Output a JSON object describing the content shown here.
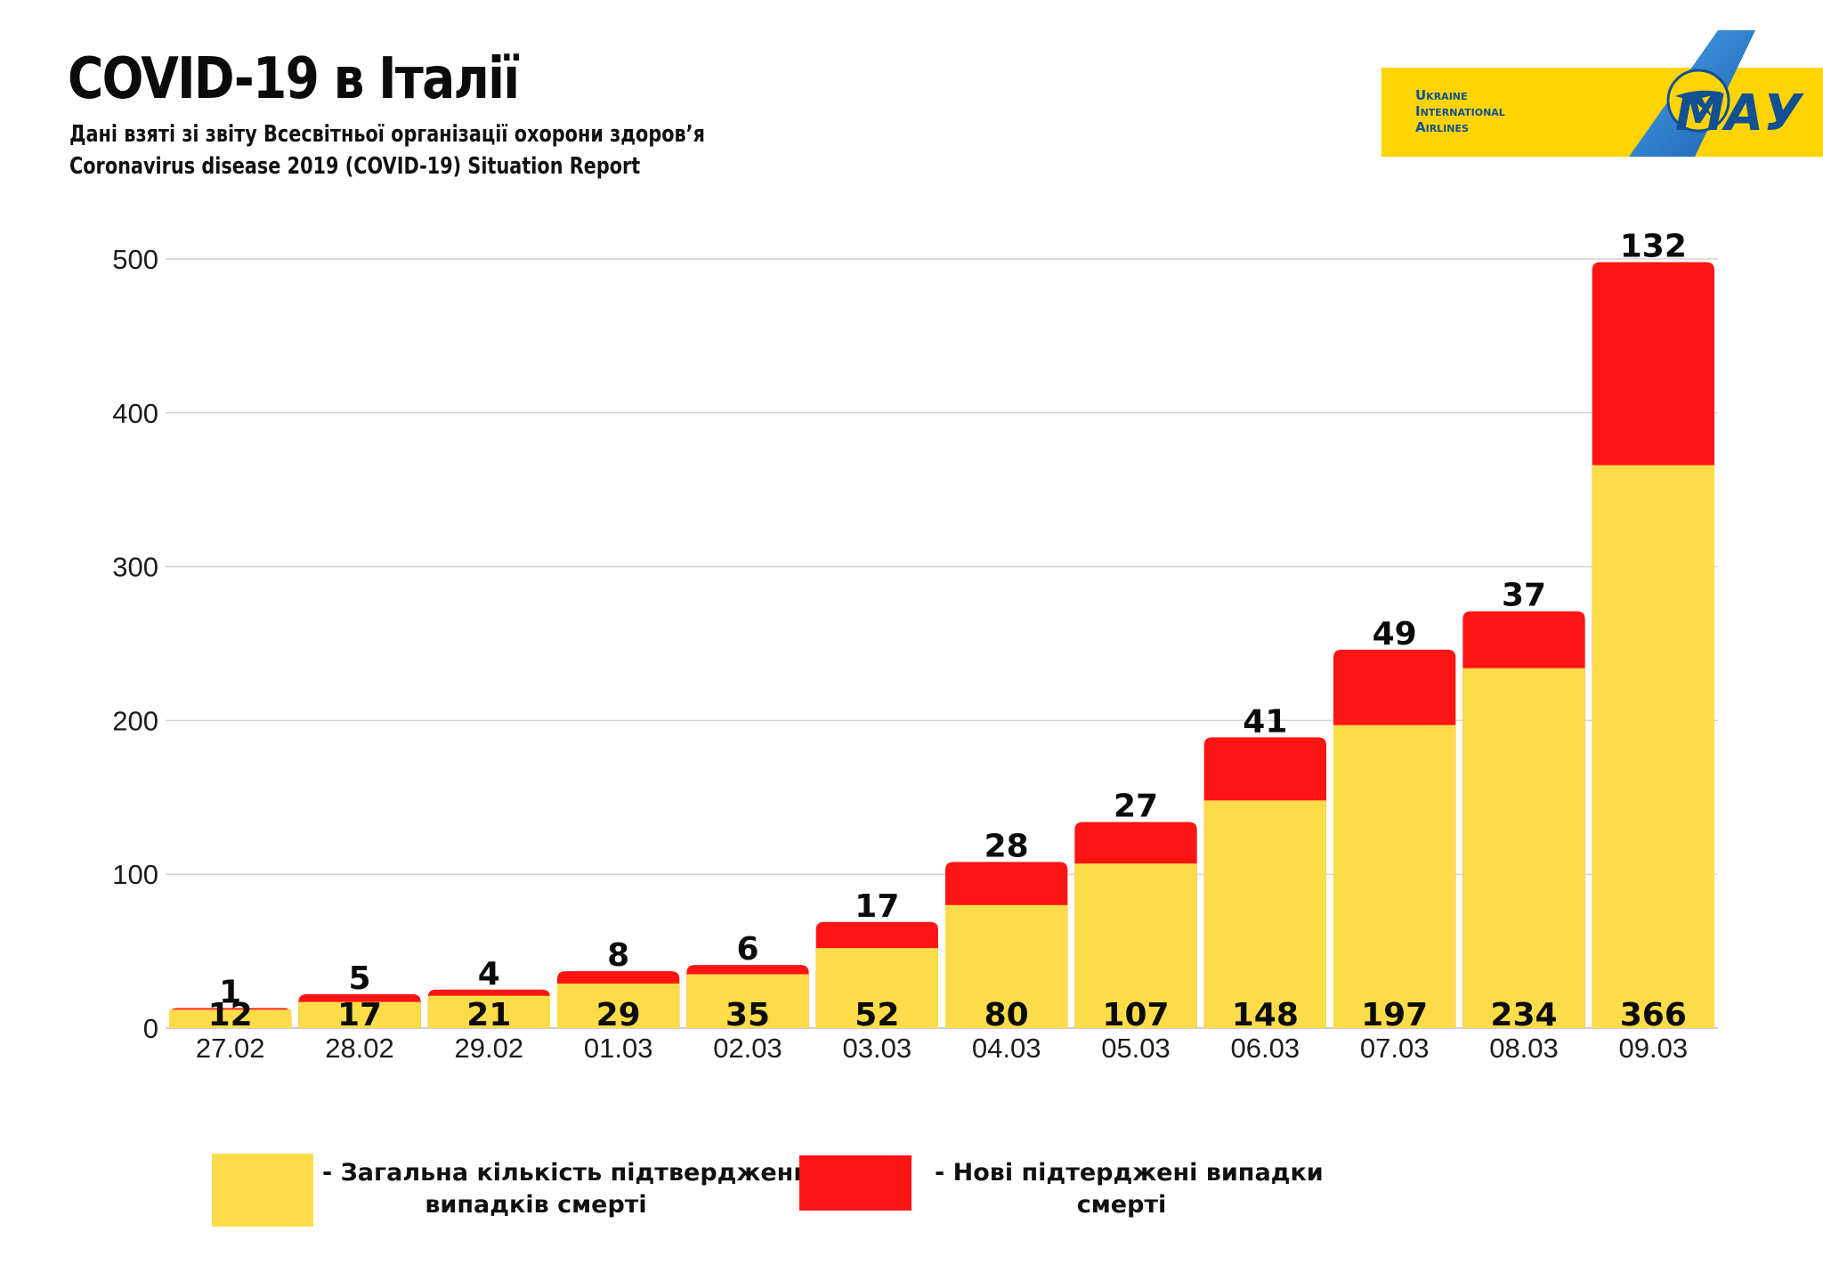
{
  "header": {
    "title": "COVID-19 в Італії",
    "subtitle_line1": "Дані взяті зі звіту Всесвітньої організації охорони здоров’я",
    "subtitle_line2": "Coronavirus disease 2019 (COVID-19) Situation Report"
  },
  "logo": {
    "line1": "Ukraine",
    "line2": "International",
    "line3": "Airlines",
    "brand": "МАУ",
    "colors": {
      "yellow": "#FFD400",
      "blue": "#1B6BC0",
      "dark_blue": "#134F93"
    }
  },
  "chart_data": {
    "type": "bar",
    "stacked": true,
    "categories": [
      "27.02",
      "28.02",
      "29.02",
      "01.03",
      "02.03",
      "03.03",
      "04.03",
      "05.03",
      "06.03",
      "07.03",
      "08.03",
      "09.03"
    ],
    "series": [
      {
        "name": "- Загальна кількість підтверджених випадків смерті",
        "color": "#FDDC4A",
        "values": [
          12,
          17,
          21,
          29,
          35,
          52,
          80,
          107,
          148,
          197,
          234,
          366
        ]
      },
      {
        "name": "- Нові підтерджені випадки смерті",
        "color": "#FF1414",
        "values": [
          1,
          5,
          4,
          8,
          6,
          17,
          28,
          27,
          41,
          49,
          37,
          132
        ]
      }
    ],
    "ylim": [
      0,
      500
    ],
    "yticks": [
      0,
      100,
      200,
      300,
      400,
      500
    ],
    "grid": true,
    "legend_position": "bottom",
    "xlabel": "",
    "ylabel": ""
  },
  "legend": {
    "total_line1": "- Загальна кількість підтверджених",
    "total_line2": "випадків смерті",
    "new_line1": "- Нові підтерджені випадки",
    "new_line2": "смерті"
  }
}
